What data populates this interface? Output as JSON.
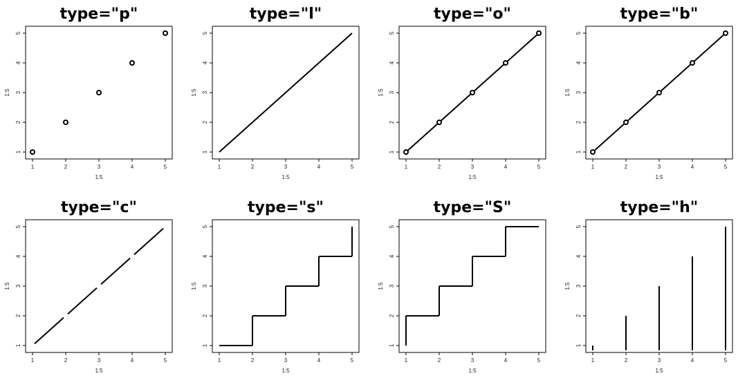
{
  "chart_data": [
    {
      "type": "scatter",
      "plot_type": "p",
      "title": "type=\"p\"",
      "xlabel": "1:5",
      "ylabel": "1:5",
      "x": [
        1,
        2,
        3,
        4,
        5
      ],
      "y": [
        1,
        2,
        3,
        4,
        5
      ],
      "xlim": [
        1,
        5
      ],
      "ylim": [
        1,
        5
      ],
      "xticks": [
        "1",
        "2",
        "3",
        "4",
        "5"
      ],
      "yticks": [
        "1",
        "2",
        "3",
        "4",
        "5"
      ]
    },
    {
      "type": "line",
      "plot_type": "l",
      "title": "type=\"l\"",
      "xlabel": "1:5",
      "ylabel": "1:5",
      "x": [
        1,
        2,
        3,
        4,
        5
      ],
      "y": [
        1,
        2,
        3,
        4,
        5
      ],
      "xlim": [
        1,
        5
      ],
      "ylim": [
        1,
        5
      ],
      "xticks": [
        "1",
        "2",
        "3",
        "4",
        "5"
      ],
      "yticks": [
        "1",
        "2",
        "3",
        "4",
        "5"
      ]
    },
    {
      "type": "line",
      "plot_type": "o",
      "title": "type=\"o\"",
      "xlabel": "1:5",
      "ylabel": "1:5",
      "x": [
        1,
        2,
        3,
        4,
        5
      ],
      "y": [
        1,
        2,
        3,
        4,
        5
      ],
      "xlim": [
        1,
        5
      ],
      "ylim": [
        1,
        5
      ],
      "xticks": [
        "1",
        "2",
        "3",
        "4",
        "5"
      ],
      "yticks": [
        "1",
        "2",
        "3",
        "4",
        "5"
      ]
    },
    {
      "type": "line",
      "plot_type": "b",
      "title": "type=\"b\"",
      "xlabel": "1:5",
      "ylabel": "1:5",
      "x": [
        1,
        2,
        3,
        4,
        5
      ],
      "y": [
        1,
        2,
        3,
        4,
        5
      ],
      "xlim": [
        1,
        5
      ],
      "ylim": [
        1,
        5
      ],
      "xticks": [
        "1",
        "2",
        "3",
        "4",
        "5"
      ],
      "yticks": [
        "1",
        "2",
        "3",
        "4",
        "5"
      ]
    },
    {
      "type": "line",
      "plot_type": "c",
      "title": "type=\"c\"",
      "xlabel": "1:5",
      "ylabel": "1:5",
      "x": [
        1,
        2,
        3,
        4,
        5
      ],
      "y": [
        1,
        2,
        3,
        4,
        5
      ],
      "xlim": [
        1,
        5
      ],
      "ylim": [
        1,
        5
      ],
      "xticks": [
        "1",
        "2",
        "3",
        "4",
        "5"
      ],
      "yticks": [
        "1",
        "2",
        "3",
        "4",
        "5"
      ]
    },
    {
      "type": "line",
      "plot_type": "s",
      "title": "type=\"s\"",
      "xlabel": "1:5",
      "ylabel": "1:5",
      "x": [
        1,
        2,
        3,
        4,
        5
      ],
      "y": [
        1,
        2,
        3,
        4,
        5
      ],
      "xlim": [
        1,
        5
      ],
      "ylim": [
        1,
        5
      ],
      "xticks": [
        "1",
        "2",
        "3",
        "4",
        "5"
      ],
      "yticks": [
        "1",
        "2",
        "3",
        "4",
        "5"
      ]
    },
    {
      "type": "line",
      "plot_type": "S",
      "title": "type=\"S\"",
      "xlabel": "1:5",
      "ylabel": "1:5",
      "x": [
        1,
        2,
        3,
        4,
        5
      ],
      "y": [
        1,
        2,
        3,
        4,
        5
      ],
      "xlim": [
        1,
        5
      ],
      "ylim": [
        1,
        5
      ],
      "xticks": [
        "1",
        "2",
        "3",
        "4",
        "5"
      ],
      "yticks": [
        "1",
        "2",
        "3",
        "4",
        "5"
      ]
    },
    {
      "type": "bar",
      "plot_type": "h",
      "title": "type=\"h\"",
      "xlabel": "1:5",
      "ylabel": "1:5",
      "x": [
        1,
        2,
        3,
        4,
        5
      ],
      "y": [
        1,
        2,
        3,
        4,
        5
      ],
      "xlim": [
        1,
        5
      ],
      "ylim": [
        1,
        5
      ],
      "xticks": [
        "1",
        "2",
        "3",
        "4",
        "5"
      ],
      "yticks": [
        "1",
        "2",
        "3",
        "4",
        "5"
      ]
    }
  ],
  "colors": {
    "ink": "#000000",
    "background": "#ffffff",
    "tick_text": "#222222"
  }
}
